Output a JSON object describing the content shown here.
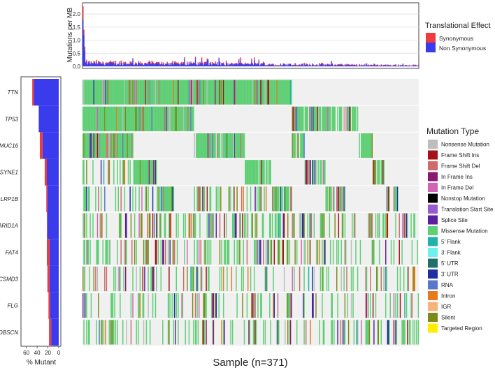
{
  "chart_data": [
    {
      "type": "bar",
      "stacked": true,
      "ylabel": "Mutations per MB",
      "y_ticks": [
        "0.0",
        "0.5",
        "1.0",
        "1.5",
        "2.0"
      ],
      "ylim": [
        0,
        2.35
      ],
      "grid": true,
      "legend": {
        "title": "Translational Effect",
        "placement": "right",
        "entries": [
          {
            "name": "Synonymous",
            "color": "#ee3b3b"
          },
          {
            "name": "Non Synonymous",
            "color": "#3b3bee"
          }
        ]
      },
      "description_values": "per-sample stacked mutation burden; max about 2.3, most samples below 0.3",
      "peaks": [
        {
          "sample_index": 0,
          "non_synonymous": 1.8,
          "synonymous": 0.5
        },
        {
          "sample_index": 1,
          "non_synonymous": 1.2,
          "synonymous": 0.2
        },
        {
          "sample_index": 2,
          "non_synonymous": 0.6,
          "synonymous": 0.15
        }
      ]
    },
    {
      "type": "bar",
      "orientation": "horizontal",
      "stacked": true,
      "xlabel": "% Mutant",
      "x_ticks": [
        "60",
        "40",
        "20",
        "0"
      ],
      "xlim": [
        0,
        66
      ],
      "categories": [
        "TTN",
        "TP53",
        "MUC16",
        "SYNE1",
        "LRP1B",
        "ARID1A",
        "FAT4",
        "CSMD3",
        "FLG",
        "OBSCN"
      ],
      "series": [
        {
          "name": "Non Synonymous",
          "values": [
            46,
            37,
            30,
            22,
            21,
            21,
            17,
            17,
            16,
            14
          ]
        },
        {
          "name": "Synonymous",
          "values": [
            3,
            0,
            5,
            4,
            2,
            1,
            5,
            4,
            3,
            4
          ]
        }
      ]
    },
    {
      "type": "heatmap",
      "xlabel": "Sample (n=371)",
      "rows": [
        "TTN",
        "TP53",
        "MUC16",
        "SYNE1",
        "LRP1B",
        "ARID1A",
        "FAT4",
        "CSMD3",
        "FLG",
        "OBSCN"
      ],
      "n_samples": 371,
      "background_color": "#f0f0f0",
      "legend": {
        "title": "Mutation Type",
        "placement": "right",
        "entries": [
          {
            "name": "Nonsense Mutation",
            "color": "#bdbdbd"
          },
          {
            "name": "Frame Shift Ins",
            "color": "#a50f15"
          },
          {
            "name": "Frame Shift Del",
            "color": "#cd6a6a"
          },
          {
            "name": "In Frame Ins",
            "color": "#8b1a6e"
          },
          {
            "name": "In Frame Del",
            "color": "#d462b5"
          },
          {
            "name": "Nonstop Mutation",
            "color": "#000000"
          },
          {
            "name": "Translation Start Site",
            "color": "#9b59d0"
          },
          {
            "name": "Splice Site",
            "color": "#5b1f9f"
          },
          {
            "name": "Missense Mutation",
            "color": "#5fcf75"
          },
          {
            "name": "5' Flank",
            "color": "#20b2aa"
          },
          {
            "name": "3' Flank",
            "color": "#6ff0f0"
          },
          {
            "name": "5' UTR",
            "color": "#1f6f6f"
          },
          {
            "name": "3' UTR",
            "color": "#1c2fa3"
          },
          {
            "name": "RNA",
            "color": "#5577cc"
          },
          {
            "name": "Intron",
            "color": "#e87a1e"
          },
          {
            "name": "IGR",
            "color": "#f7b27a"
          },
          {
            "name": "Silent",
            "color": "#7d8a16"
          },
          {
            "name": "Targeted Region",
            "color": "#ffee00"
          }
        ]
      }
    }
  ]
}
